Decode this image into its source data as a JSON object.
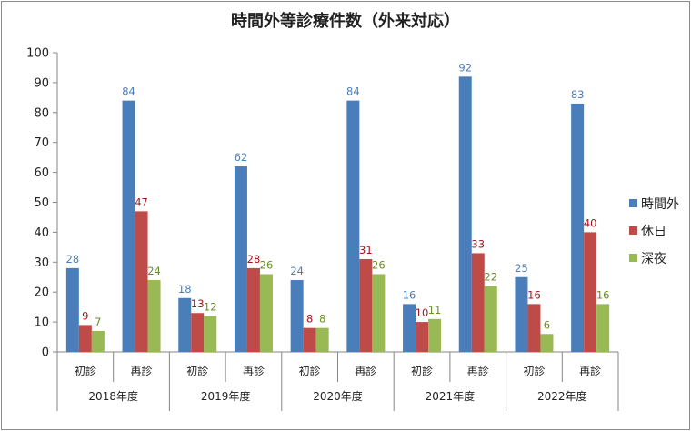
{
  "chart_data": {
    "type": "bar",
    "title": "時間外等診療件数（外来対応）",
    "ylim": [
      0,
      100
    ],
    "yticks": [
      0,
      10,
      20,
      30,
      40,
      50,
      60,
      70,
      80,
      90,
      100
    ],
    "grid": false,
    "legend_position": "right",
    "groups": [
      "2018年度",
      "2019年度",
      "2020年度",
      "2021年度",
      "2022年度"
    ],
    "subcategories": [
      "初診",
      "再診"
    ],
    "categories": [
      "2018年度 初診",
      "2018年度 再診",
      "2019年度 初診",
      "2019年度 再診",
      "2020年度 初診",
      "2020年度 再診",
      "2021年度 初診",
      "2021年度 再診",
      "2022年度 初診",
      "2022年度 再診"
    ],
    "series": [
      {
        "name": "時間外",
        "color": "#4a7ebb",
        "label_color": "#4a7ebb",
        "values": [
          28,
          84,
          18,
          62,
          24,
          84,
          16,
          92,
          25,
          83
        ]
      },
      {
        "name": "休日",
        "color": "#be4b48",
        "label_color": "#a0161b",
        "values": [
          9,
          47,
          13,
          28,
          8,
          31,
          10,
          33,
          16,
          40
        ]
      },
      {
        "name": "深夜",
        "color": "#98b954",
        "label_color": "#6a8d24",
        "values": [
          7,
          24,
          12,
          26,
          8,
          26,
          11,
          22,
          6,
          16
        ]
      }
    ]
  }
}
